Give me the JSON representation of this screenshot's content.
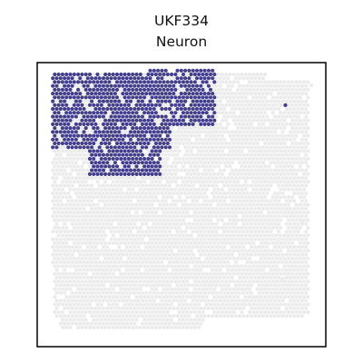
{
  "chart_data": {
    "type": "scatter",
    "title_lines": [
      "UKF334",
      "Neuron"
    ],
    "xlabel": "",
    "ylabel": "",
    "xlim": [
      0,
      100
    ],
    "ylim": [
      0,
      100
    ],
    "axes_visible": false,
    "grid": false,
    "legend": "none",
    "background_color": "#ebebeb",
    "highlight_color": "#443f8c",
    "series": [
      {
        "name": "",
        "role": "tissue spots (background)",
        "color": "#ebebeb",
        "regions": [
          {
            "xmin": 6,
            "xmax": 80,
            "ymin": 10,
            "ymax": 96
          },
          {
            "xmin": 5,
            "xmax": 86,
            "ymin": 28,
            "ymax": 88
          },
          {
            "xmin": 70,
            "xmax": 94,
            "ymin": 10,
            "ymax": 94
          },
          {
            "xmin": 8,
            "xmax": 58,
            "ymin": 6,
            "ymax": 20
          }
        ],
        "outliers": [
          [
            95,
            92
          ],
          [
            92,
            44
          ],
          [
            85,
            24
          ]
        ]
      },
      {
        "name": "",
        "role": "Neuron-high spots",
        "color": "#443f8c",
        "regions": [
          {
            "xmin": 5,
            "xmax": 46,
            "ymin": 70,
            "ymax": 96
          },
          {
            "xmin": 18,
            "xmax": 43,
            "ymin": 60,
            "ymax": 78
          },
          {
            "xmin": 38,
            "xmax": 62,
            "ymin": 78,
            "ymax": 98
          }
        ],
        "outliers": [
          [
            86,
            85
          ]
        ]
      }
    ]
  }
}
